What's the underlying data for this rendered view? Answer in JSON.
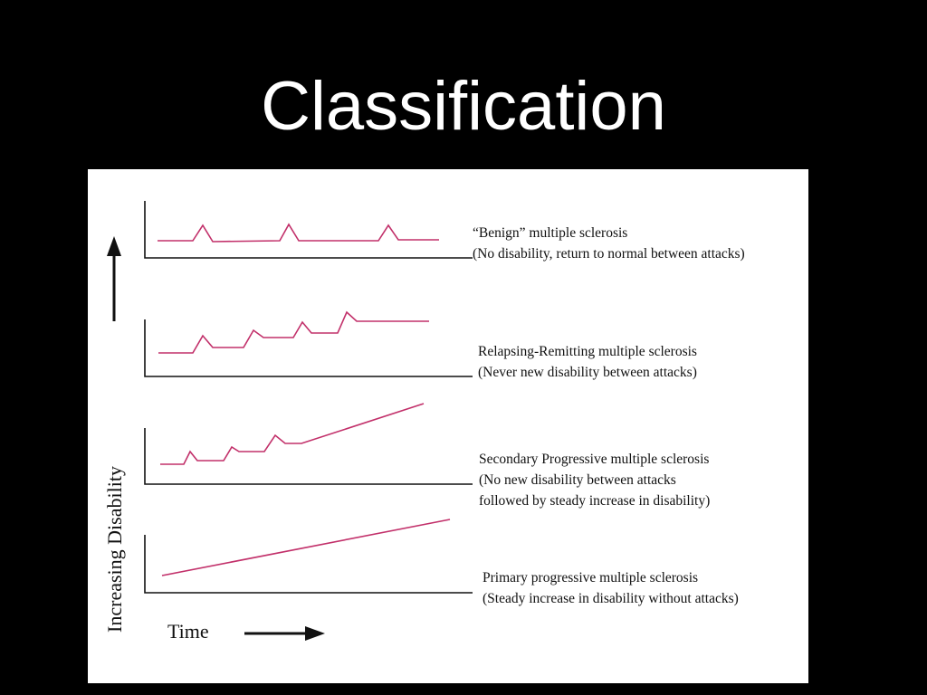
{
  "slide": {
    "title": "Classification"
  },
  "diagram": {
    "y_axis_label": "Increasing Disability",
    "x_axis_label": "Time",
    "line_color": "#c2306a",
    "axis_color": "#111111",
    "panels": [
      {
        "caption_line1": "“Benign” multiple sclerosis",
        "caption_line2": "(No disability, return to normal between attacks)",
        "caption_line3": ""
      },
      {
        "caption_line1": "Relapsing-Remitting multiple sclerosis",
        "caption_line2": "(Never new disability between attacks)",
        "caption_line3": ""
      },
      {
        "caption_line1": "Secondary Progressive multiple sclerosis",
        "caption_line2": "(No new disability between attacks",
        "caption_line3": "followed by steady increase in disability)"
      },
      {
        "caption_line1": "Primary progressive multiple sclerosis",
        "caption_line2": "(Steady increase in disability without attacks)",
        "caption_line3": ""
      }
    ]
  }
}
